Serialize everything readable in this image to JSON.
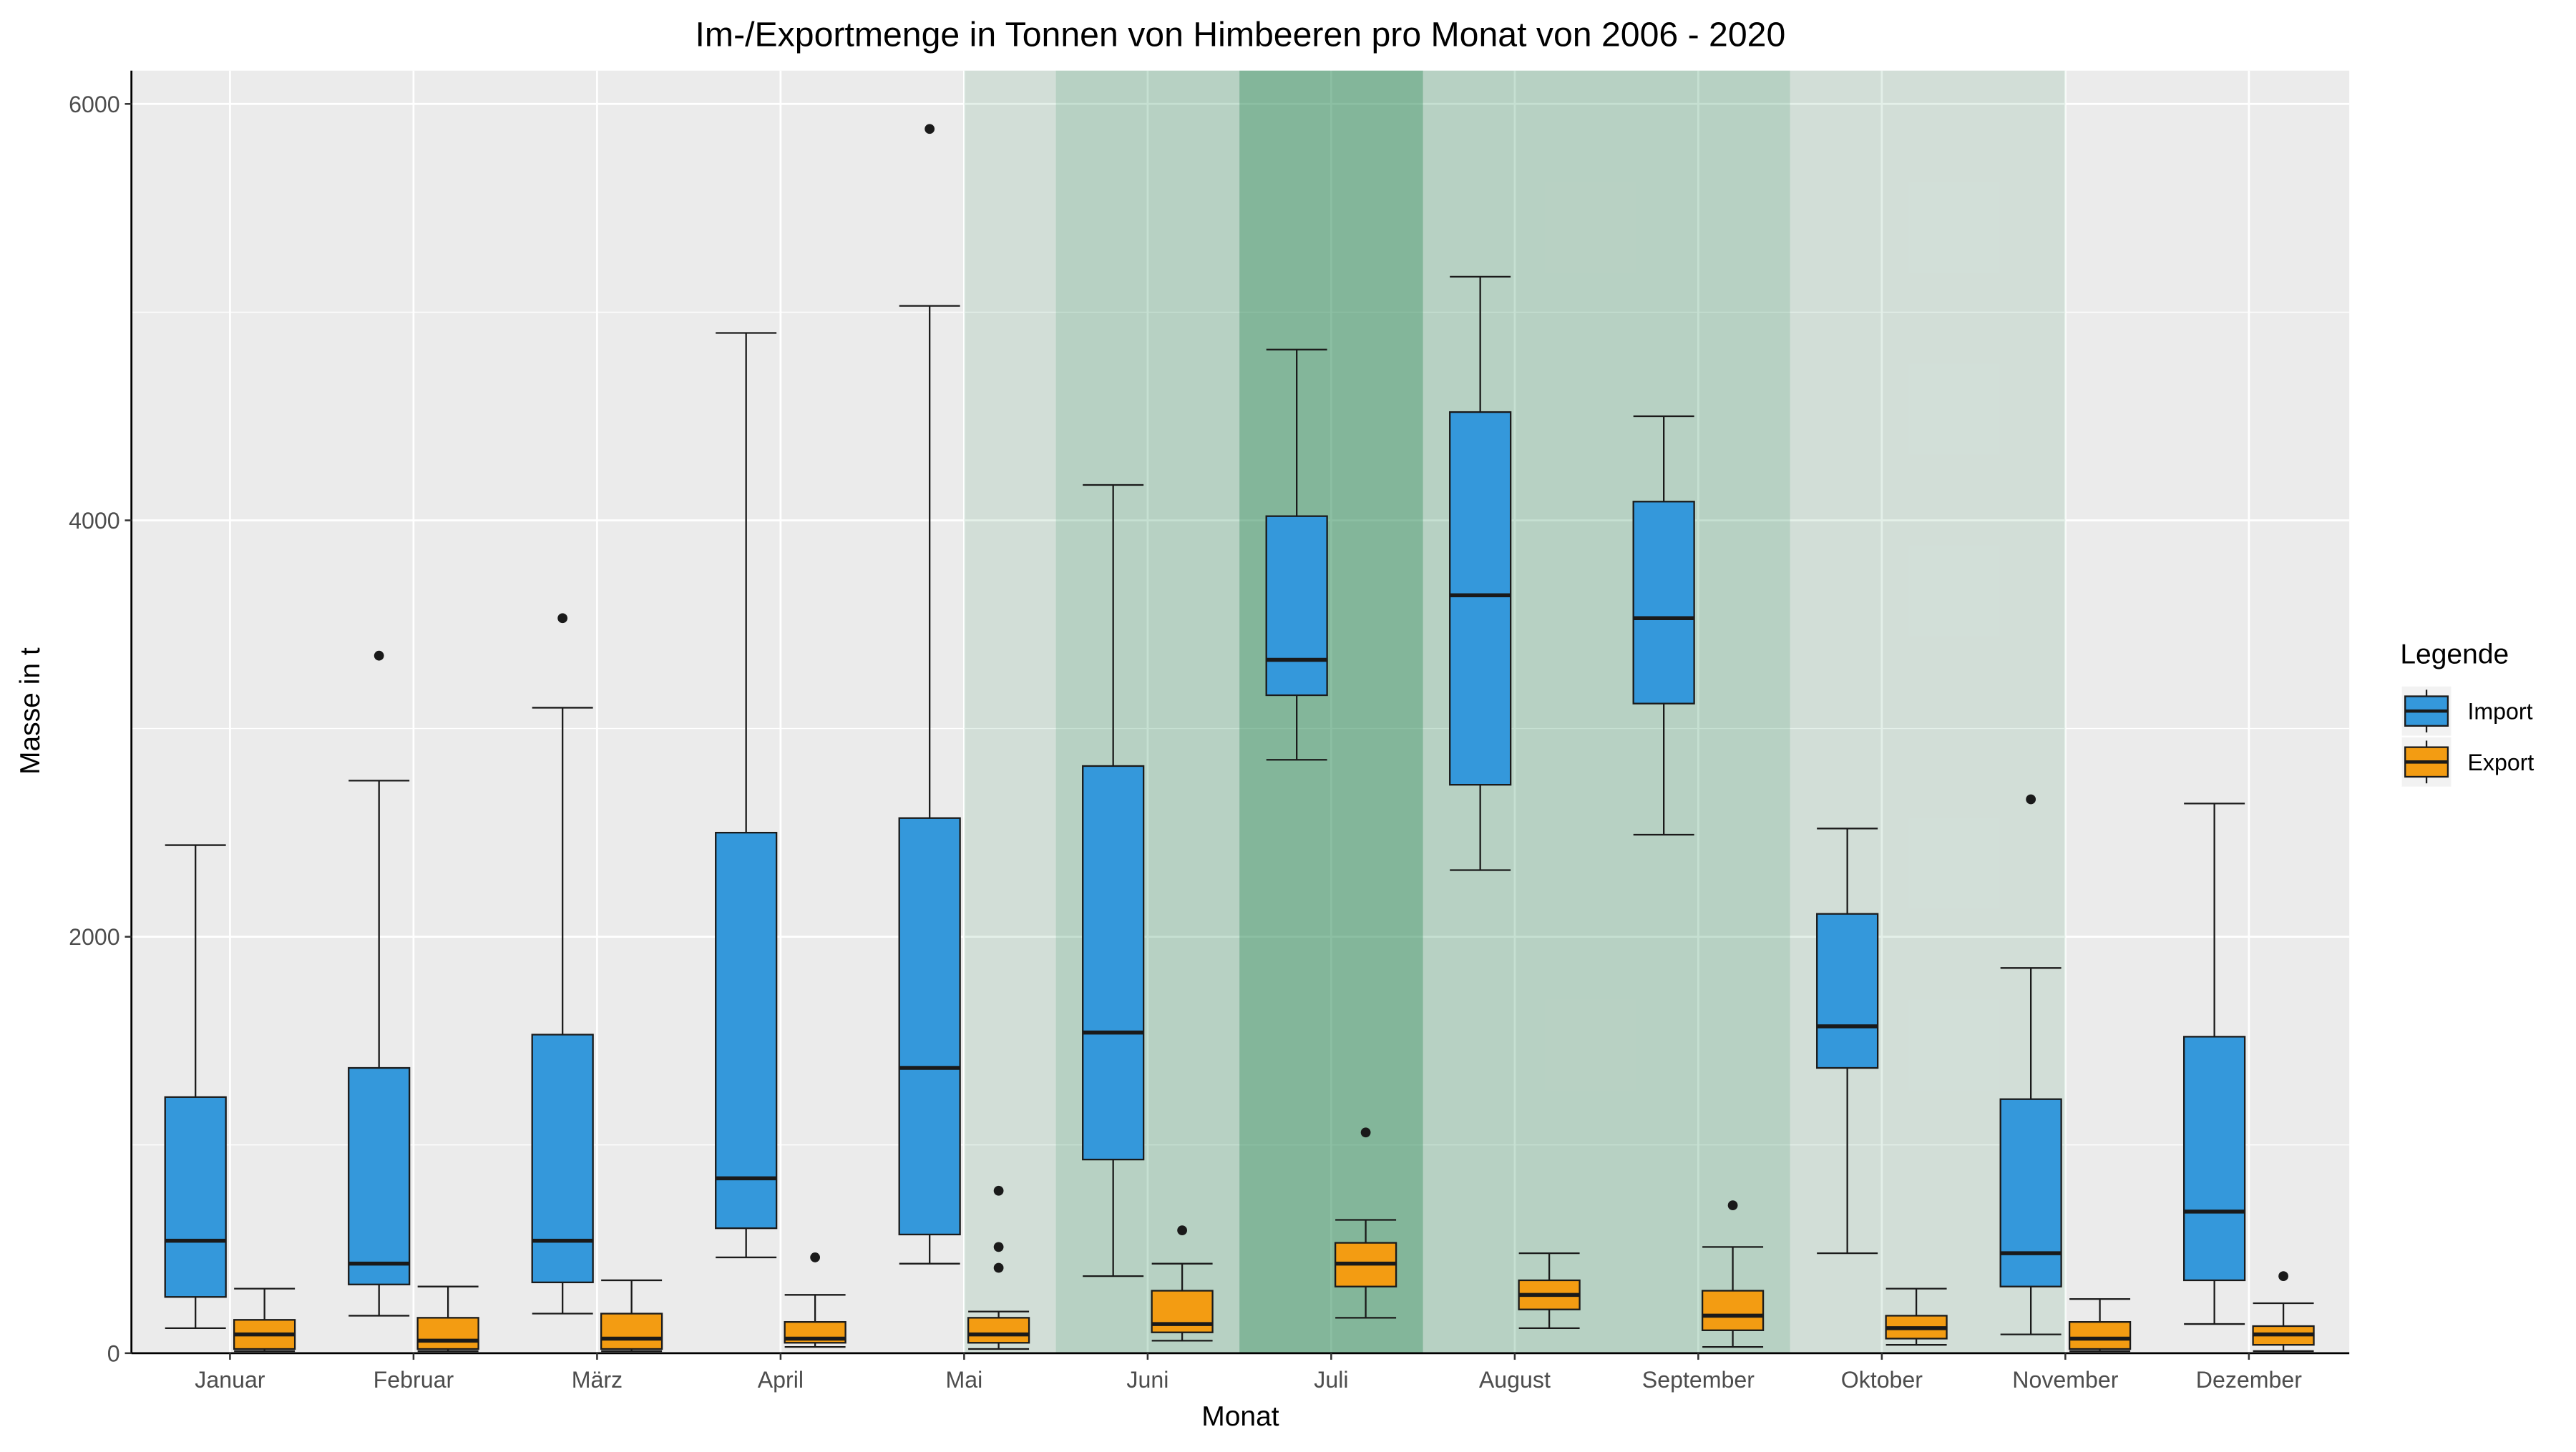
{
  "chart_data": {
    "type": "box",
    "title": "Im-/Exportmenge in Tonnen von Himbeeren pro Monat von 2006 - 2020",
    "xlabel": "Monat",
    "ylabel": "Masse in t",
    "categories": [
      "Januar",
      "Februar",
      "März",
      "April",
      "Mai",
      "Juni",
      "Juli",
      "August",
      "September",
      "Oktober",
      "November",
      "Dezember"
    ],
    "ylim": [
      0,
      6160
    ],
    "yticks": [
      0,
      2000,
      4000,
      6000
    ],
    "grid": true,
    "panel_background": "#ebebeb",
    "legend": {
      "title": "Legende",
      "position": "right"
    },
    "series": [
      {
        "name": "Import",
        "color": "#3498db",
        "boxes": [
          {
            "min": 120,
            "q1": 270,
            "median": 540,
            "q3": 1230,
            "max": 2440,
            "outliers": []
          },
          {
            "min": 180,
            "q1": 330,
            "median": 430,
            "q3": 1370,
            "max": 2750,
            "outliers": [
              3350
            ]
          },
          {
            "min": 190,
            "q1": 340,
            "median": 540,
            "q3": 1530,
            "max": 3100,
            "outliers": [
              3530
            ]
          },
          {
            "min": 460,
            "q1": 600,
            "median": 840,
            "q3": 2500,
            "max": 4900,
            "outliers": []
          },
          {
            "min": 430,
            "q1": 570,
            "median": 1370,
            "q3": 2570,
            "max": 5030,
            "outliers": [
              5880
            ]
          },
          {
            "min": 370,
            "q1": 930,
            "median": 1540,
            "q3": 2820,
            "max": 4170,
            "outliers": []
          },
          {
            "min": 2850,
            "q1": 3160,
            "median": 3330,
            "q3": 4020,
            "max": 4820,
            "outliers": []
          },
          {
            "min": 2320,
            "q1": 2730,
            "median": 3640,
            "q3": 4520,
            "max": 5170,
            "outliers": []
          },
          {
            "min": 2490,
            "q1": 3120,
            "median": 3530,
            "q3": 4090,
            "max": 4500,
            "outliers": []
          },
          {
            "min": 480,
            "q1": 1370,
            "median": 1570,
            "q3": 2110,
            "max": 2520,
            "outliers": []
          },
          {
            "min": 90,
            "q1": 320,
            "median": 480,
            "q3": 1220,
            "max": 1850,
            "outliers": [
              2660
            ]
          },
          {
            "min": 140,
            "q1": 350,
            "median": 680,
            "q3": 1520,
            "max": 2640,
            "outliers": []
          }
        ]
      },
      {
        "name": "Export",
        "color": "#f39c12",
        "boxes": [
          {
            "min": 10,
            "q1": 20,
            "median": 90,
            "q3": 160,
            "max": 310,
            "outliers": []
          },
          {
            "min": 10,
            "q1": 20,
            "median": 60,
            "q3": 170,
            "max": 320,
            "outliers": []
          },
          {
            "min": 10,
            "q1": 20,
            "median": 70,
            "q3": 190,
            "max": 350,
            "outliers": []
          },
          {
            "min": 30,
            "q1": 50,
            "median": 70,
            "q3": 150,
            "max": 280,
            "outliers": [
              460
            ]
          },
          {
            "min": 20,
            "q1": 50,
            "median": 90,
            "q3": 170,
            "max": 200,
            "outliers": [
              410,
              510,
              780
            ]
          },
          {
            "min": 60,
            "q1": 100,
            "median": 140,
            "q3": 300,
            "max": 430,
            "outliers": [
              590
            ]
          },
          {
            "min": 170,
            "q1": 320,
            "median": 430,
            "q3": 530,
            "max": 640,
            "outliers": [
              1060
            ]
          },
          {
            "min": 120,
            "q1": 210,
            "median": 280,
            "q3": 350,
            "max": 480,
            "outliers": []
          },
          {
            "min": 30,
            "q1": 110,
            "median": 180,
            "q3": 300,
            "max": 510,
            "outliers": [
              710
            ]
          },
          {
            "min": 40,
            "q1": 70,
            "median": 120,
            "q3": 180,
            "max": 310,
            "outliers": []
          },
          {
            "min": 10,
            "q1": 20,
            "median": 70,
            "q3": 150,
            "max": 260,
            "outliers": []
          },
          {
            "min": 10,
            "q1": 40,
            "median": 90,
            "q3": 130,
            "max": 240,
            "outliers": [
              370
            ]
          }
        ]
      }
    ],
    "highlight_bands": {
      "color": "#2e8b57",
      "bands": [
        {
          "x_from": 5,
          "x_to": 5.5,
          "level": 1
        },
        {
          "x_from": 5.5,
          "x_to": 6.5,
          "level": 2
        },
        {
          "x_from": 6.5,
          "x_to": 7.5,
          "level": 3
        },
        {
          "x_from": 7.5,
          "x_to": 9.5,
          "level": 2
        },
        {
          "x_from": 9.5,
          "x_to": 11,
          "level": 1
        }
      ]
    }
  }
}
